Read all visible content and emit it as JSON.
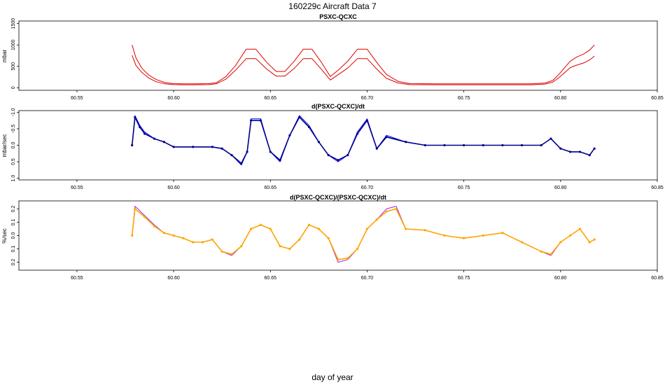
{
  "figure": {
    "title": "160229c   Aircraft Data 7",
    "xlabel": "day of year"
  },
  "chart_data": [
    {
      "type": "line",
      "title": "PSXC-QCXC",
      "ylabel": "mbar",
      "xlim": [
        60.52,
        60.85
      ],
      "ylim": [
        -60,
        1560
      ],
      "xticks": [
        60.55,
        60.6,
        60.65,
        60.7,
        60.75,
        60.8,
        60.85
      ],
      "xtick_labels": [
        "60.55",
        "60.60",
        "60.65",
        "60.70",
        "60.75",
        "60.80",
        "60.85"
      ],
      "yticks": [
        0,
        500,
        1000,
        1500
      ],
      "ytick_labels": [
        "0",
        "500",
        "1000",
        "1500"
      ],
      "series": [
        {
          "name": "upper",
          "color": "#dd0000",
          "x": [
            60.5785,
            60.5805,
            60.5835,
            60.587,
            60.591,
            60.5955,
            60.6,
            60.605,
            60.611,
            60.618,
            60.622,
            60.627,
            60.632,
            60.6375,
            60.6425,
            60.648,
            60.653,
            60.6575,
            60.6625,
            60.667,
            60.6715,
            60.676,
            60.681,
            60.6855,
            60.69,
            60.695,
            60.7,
            60.7055,
            60.71,
            60.716,
            60.722,
            60.735,
            60.76,
            60.785,
            60.792,
            60.796,
            60.7995,
            60.8025,
            60.805,
            60.8085,
            60.812,
            60.815,
            60.8175
          ],
          "y": [
            1000,
            700,
            460,
            300,
            190,
            120,
            95,
            90,
            90,
            95,
            115,
            260,
            520,
            900,
            900,
            600,
            380,
            380,
            630,
            900,
            900,
            620,
            260,
            430,
            620,
            900,
            900,
            560,
            310,
            150,
            95,
            90,
            90,
            90,
            110,
            170,
            330,
            490,
            620,
            720,
            790,
            880,
            1000
          ]
        },
        {
          "name": "lower",
          "color": "#dd0000",
          "x": [
            60.5785,
            60.5805,
            60.5835,
            60.587,
            60.591,
            60.5955,
            60.6,
            60.605,
            60.611,
            60.618,
            60.622,
            60.627,
            60.632,
            60.6375,
            60.6425,
            60.648,
            60.653,
            60.6575,
            60.6625,
            60.667,
            60.6715,
            60.676,
            60.681,
            60.6855,
            60.69,
            60.695,
            60.7,
            60.7055,
            60.71,
            60.716,
            60.722,
            60.735,
            60.76,
            60.785,
            60.792,
            60.796,
            60.7995,
            60.8025,
            60.805,
            60.8085,
            60.812,
            60.815,
            60.8175
          ],
          "y": [
            760,
            520,
            360,
            230,
            140,
            90,
            72,
            70,
            70,
            72,
            90,
            200,
            410,
            680,
            680,
            440,
            270,
            270,
            460,
            680,
            680,
            450,
            180,
            320,
            460,
            680,
            680,
            410,
            220,
            110,
            72,
            70,
            70,
            70,
            85,
            130,
            250,
            370,
            470,
            530,
            580,
            650,
            740
          ]
        }
      ]
    },
    {
      "type": "line",
      "title": "d(PSXC-QCXC)/dt",
      "ylabel": "mbar/sec",
      "xlim": [
        60.52,
        60.85
      ],
      "ylim": [
        1.05,
        -1.05
      ],
      "xticks": [
        60.55,
        60.6,
        60.65,
        60.7,
        60.75,
        60.8,
        60.85
      ],
      "xtick_labels": [
        "60.55",
        "60.60",
        "60.65",
        "60.70",
        "60.75",
        "60.80",
        "60.85"
      ],
      "yticks": [
        -1.0,
        -0.5,
        0.0,
        0.5,
        1.0
      ],
      "ytick_labels": [
        "-1.0",
        "-0.5",
        "0.0",
        "0.5",
        "1.0"
      ],
      "series": [
        {
          "name": "derivative trace",
          "color": "#0000ff",
          "x": [
            60.5785,
            60.58,
            60.5825,
            60.585,
            60.59,
            60.595,
            60.6,
            60.61,
            60.62,
            60.625,
            60.63,
            60.635,
            60.638,
            60.64,
            60.645,
            60.65,
            60.655,
            60.66,
            60.665,
            60.67,
            60.675,
            60.68,
            60.685,
            60.69,
            60.695,
            60.7,
            60.705,
            60.71,
            60.72,
            60.73,
            60.74,
            60.75,
            60.76,
            60.77,
            60.78,
            60.79,
            60.795,
            60.8,
            60.805,
            60.81,
            60.815,
            60.8175
          ],
          "y": [
            0.0,
            -0.9,
            -0.6,
            -0.4,
            -0.2,
            -0.1,
            0.05,
            0.05,
            0.05,
            0.1,
            0.3,
            0.6,
            0.2,
            -0.8,
            -0.8,
            0.2,
            0.5,
            -0.3,
            -0.9,
            -0.6,
            -0.1,
            0.3,
            0.5,
            0.3,
            -0.4,
            -0.8,
            0.1,
            -0.3,
            -0.1,
            0.0,
            0.0,
            0.0,
            0.0,
            0.0,
            0.0,
            0.0,
            -0.2,
            0.1,
            0.2,
            0.2,
            0.3,
            0.1
          ]
        },
        {
          "name": "derivative points",
          "color": "#00008b",
          "x": [
            60.5785,
            60.58,
            60.5825,
            60.585,
            60.59,
            60.595,
            60.6,
            60.61,
            60.62,
            60.625,
            60.63,
            60.635,
            60.638,
            60.64,
            60.645,
            60.65,
            60.655,
            60.66,
            60.665,
            60.67,
            60.675,
            60.68,
            60.685,
            60.69,
            60.695,
            60.7,
            60.705,
            60.71,
            60.72,
            60.73,
            60.74,
            60.75,
            60.76,
            60.77,
            60.78,
            60.79,
            60.795,
            60.8,
            60.805,
            60.81,
            60.815,
            60.8175
          ],
          "y": [
            0.0,
            -0.85,
            -0.55,
            -0.35,
            -0.2,
            -0.1,
            0.05,
            0.05,
            0.05,
            0.1,
            0.3,
            0.55,
            0.2,
            -0.75,
            -0.75,
            0.2,
            0.45,
            -0.3,
            -0.85,
            -0.55,
            -0.1,
            0.3,
            0.45,
            0.3,
            -0.35,
            -0.75,
            0.1,
            -0.25,
            -0.1,
            0.0,
            0.0,
            0.0,
            0.0,
            0.0,
            0.0,
            0.0,
            -0.2,
            0.1,
            0.2,
            0.2,
            0.3,
            0.1
          ]
        }
      ]
    },
    {
      "type": "line",
      "title": "d(PSXC-QCXC)/(PSXC-QCXC)/dt",
      "ylabel": "%/sec",
      "xlim": [
        60.52,
        60.85
      ],
      "ylim": [
        0.26,
        -0.26
      ],
      "xticks": [
        60.55,
        60.6,
        60.65,
        60.7,
        60.75,
        60.8,
        60.85
      ],
      "xtick_labels": [
        "60.55",
        "60.60",
        "60.65",
        "60.70",
        "60.75",
        "60.80",
        "60.85"
      ],
      "yticks": [
        -0.2,
        -0.1,
        0.0,
        0.1,
        0.2
      ],
      "ytick_labels": [
        "0.2",
        "0.1",
        "0.0",
        "0.1",
        "0.2"
      ],
      "series": [
        {
          "name": "relative trace",
          "color": "#a020f0",
          "x": [
            60.5785,
            60.58,
            60.585,
            60.59,
            60.595,
            60.6,
            60.605,
            60.61,
            60.615,
            60.62,
            60.625,
            60.63,
            60.635,
            60.64,
            60.645,
            60.65,
            60.655,
            60.66,
            60.665,
            60.67,
            60.675,
            60.68,
            60.685,
            60.69,
            60.695,
            60.7,
            60.705,
            60.71,
            60.715,
            60.72,
            60.73,
            60.74,
            60.75,
            60.76,
            60.77,
            60.78,
            60.79,
            60.795,
            60.8,
            60.805,
            60.81,
            60.815,
            60.8175
          ],
          "y": [
            0.0,
            -0.22,
            -0.15,
            -0.08,
            -0.02,
            0.0,
            0.02,
            0.05,
            0.05,
            0.03,
            0.12,
            0.15,
            0.08,
            -0.05,
            -0.08,
            -0.05,
            0.08,
            0.1,
            0.03,
            -0.08,
            -0.05,
            0.02,
            0.2,
            0.18,
            0.1,
            -0.05,
            -0.12,
            -0.2,
            -0.22,
            -0.05,
            -0.04,
            0.0,
            0.02,
            0.0,
            -0.02,
            0.05,
            0.12,
            0.15,
            0.05,
            0.0,
            -0.05,
            0.05,
            0.03
          ]
        },
        {
          "name": "relative points",
          "color": "#ffa500",
          "x": [
            60.5785,
            60.58,
            60.585,
            60.59,
            60.595,
            60.6,
            60.605,
            60.61,
            60.615,
            60.62,
            60.625,
            60.63,
            60.635,
            60.64,
            60.645,
            60.65,
            60.655,
            60.66,
            60.665,
            60.67,
            60.675,
            60.68,
            60.685,
            60.69,
            60.695,
            60.7,
            60.705,
            60.71,
            60.715,
            60.72,
            60.73,
            60.74,
            60.75,
            60.76,
            60.77,
            60.78,
            60.79,
            60.795,
            60.8,
            60.805,
            60.81,
            60.815,
            60.8175
          ],
          "y": [
            0.0,
            -0.2,
            -0.14,
            -0.07,
            -0.02,
            0.0,
            0.02,
            0.05,
            0.05,
            0.03,
            0.12,
            0.14,
            0.08,
            -0.05,
            -0.08,
            -0.05,
            0.08,
            0.1,
            0.03,
            -0.08,
            -0.05,
            0.02,
            0.18,
            0.17,
            0.1,
            -0.05,
            -0.12,
            -0.18,
            -0.2,
            -0.05,
            -0.04,
            0.0,
            0.02,
            0.0,
            -0.02,
            0.05,
            0.12,
            0.14,
            0.05,
            0.0,
            -0.05,
            0.05,
            0.03
          ]
        }
      ]
    }
  ]
}
